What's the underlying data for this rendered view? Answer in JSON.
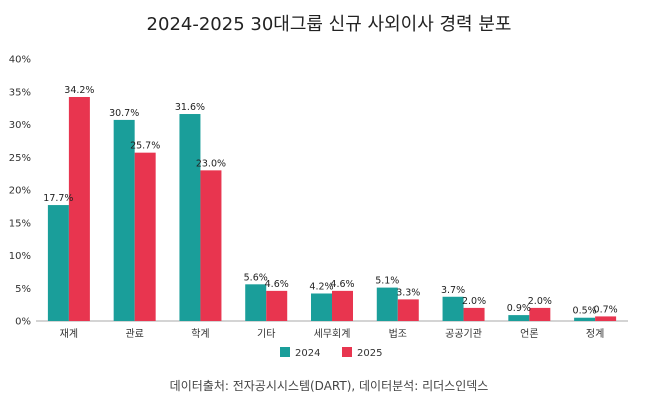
{
  "chart_data": {
    "type": "bar",
    "title": "2024-2025 30대그룹 신규 사외이사 경력 분포",
    "categories": [
      "재계",
      "관료",
      "학계",
      "기타",
      "세무회계",
      "법조",
      "공공기관",
      "언론",
      "정계"
    ],
    "series": [
      {
        "name": "2024",
        "color": "#1a9e9a",
        "values": [
          17.7,
          30.7,
          31.6,
          5.6,
          4.2,
          5.1,
          3.7,
          0.9,
          0.5
        ]
      },
      {
        "name": "2025",
        "color": "#e8354f",
        "values": [
          34.2,
          25.7,
          23.0,
          4.6,
          4.6,
          3.3,
          2.0,
          2.0,
          0.7
        ]
      }
    ],
    "data_labels": [
      [
        "17.7%",
        "30.7%",
        "31.6%",
        "5.6%",
        "4.2%",
        "5.1%",
        "3.7%",
        "0.9%",
        "0.5%"
      ],
      [
        "34.2%",
        "25.7%",
        "23.0%",
        "4.6%",
        "4.6%",
        "3.3%",
        "2.0%",
        "2.0%",
        "0.7%"
      ]
    ],
    "ylim": [
      0,
      40
    ],
    "yticks": [
      0,
      5,
      10,
      15,
      20,
      25,
      30,
      35,
      40
    ],
    "ytick_labels": [
      "0%",
      "5%",
      "10%",
      "15%",
      "20%",
      "25%",
      "30%",
      "35%",
      "40%"
    ],
    "grid": false,
    "legend": "bottom-center",
    "xlabel": "",
    "ylabel": ""
  },
  "source": "데이터출처: 전자공시시스템(DART), 데이터분석: 리더스인덱스"
}
